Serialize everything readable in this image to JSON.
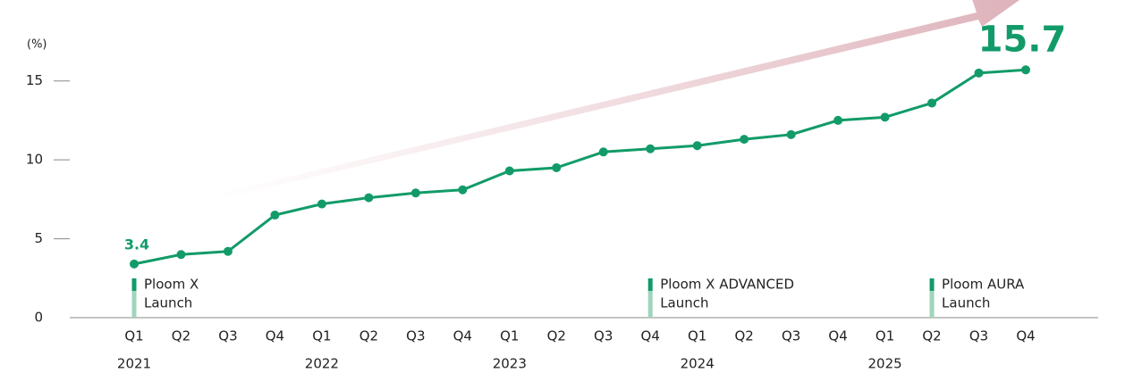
{
  "chart_data": {
    "type": "line",
    "y_label": "(%)",
    "categories": [
      "Q1",
      "Q2",
      "Q3",
      "Q4",
      "Q1",
      "Q2",
      "Q3",
      "Q4",
      "Q1",
      "Q2",
      "Q3",
      "Q4",
      "Q1",
      "Q2",
      "Q3",
      "Q4",
      "Q1",
      "Q2",
      "Q3",
      "Q4"
    ],
    "year_labels": [
      "2021",
      null,
      null,
      null,
      "2022",
      null,
      null,
      null,
      "2023",
      null,
      null,
      null,
      "2024",
      null,
      null,
      null,
      "2025",
      null,
      null,
      null
    ],
    "values": [
      3.4,
      4.0,
      4.2,
      6.5,
      7.2,
      7.6,
      7.9,
      8.1,
      9.3,
      9.5,
      10.5,
      10.7,
      10.9,
      11.3,
      11.6,
      12.5,
      12.7,
      13.6,
      15.5,
      15.7
    ],
    "value_labels": [
      "3.4",
      null,
      null,
      null,
      null,
      null,
      null,
      null,
      null,
      null,
      null,
      null,
      null,
      null,
      null,
      null,
      null,
      null,
      null,
      "15.7"
    ],
    "launches": [
      [
        "Ploom X",
        "Launch"
      ],
      null,
      null,
      null,
      null,
      null,
      null,
      null,
      null,
      null,
      null,
      [
        "Ploom X ADVANCED",
        "Launch"
      ],
      null,
      null,
      null,
      null,
      null,
      [
        "Ploom AURA",
        "Launch"
      ],
      null,
      null
    ],
    "color": "#129b69",
    "ylim": [
      0,
      16
    ],
    "yticks": [
      0,
      5,
      10,
      15
    ]
  }
}
